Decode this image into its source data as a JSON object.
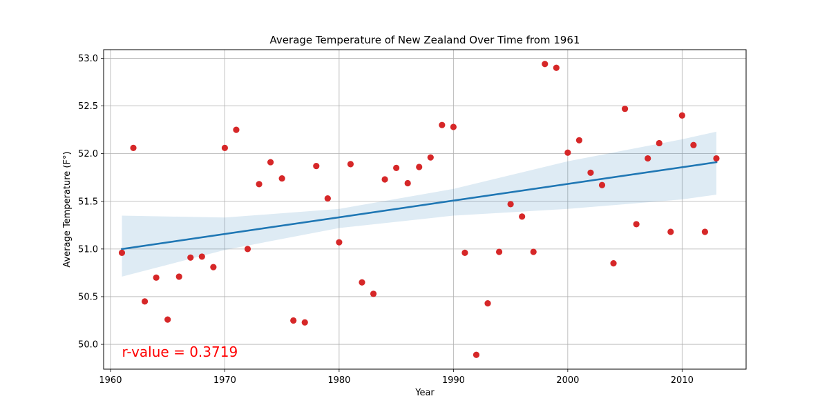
{
  "chart_data": {
    "type": "scatter",
    "title": "Average Temperature of New Zealand Over Time from 1961",
    "xlabel": "Year",
    "ylabel": "Average Temperature (F°)",
    "xlim": [
      1959.4,
      2015.6
    ],
    "ylim": [
      49.74,
      53.09
    ],
    "xticks": [
      1960,
      1970,
      1980,
      1990,
      2000,
      2010
    ],
    "yticks": [
      "50.0",
      "50.5",
      "51.0",
      "51.5",
      "52.0",
      "52.5",
      "53.0"
    ],
    "grid": true,
    "series": [
      {
        "kind": "points",
        "color": "#d62728",
        "x": [
          1961,
          1962,
          1963,
          1964,
          1965,
          1966,
          1967,
          1968,
          1969,
          1970,
          1971,
          1972,
          1973,
          1974,
          1975,
          1976,
          1977,
          1978,
          1979,
          1980,
          1981,
          1982,
          1983,
          1984,
          1985,
          1986,
          1987,
          1988,
          1989,
          1990,
          1991,
          1992,
          1993,
          1994,
          1995,
          1996,
          1997,
          1998,
          1999,
          2000,
          2001,
          2002,
          2003,
          2004,
          2005,
          2006,
          2007,
          2008,
          2009,
          2010,
          2011,
          2012,
          2013
        ],
        "y": [
          50.96,
          52.06,
          50.45,
          50.7,
          50.26,
          50.71,
          50.91,
          50.92,
          50.81,
          52.06,
          52.25,
          51.0,
          51.68,
          51.91,
          51.74,
          50.25,
          50.23,
          51.87,
          51.53,
          51.07,
          51.89,
          50.65,
          50.53,
          51.73,
          51.85,
          51.69,
          51.86,
          51.96,
          52.3,
          52.28,
          50.96,
          49.89,
          50.43,
          50.97,
          51.47,
          51.34,
          50.97,
          52.94,
          52.9,
          52.01,
          52.14,
          51.8,
          51.67,
          50.85,
          52.47,
          51.26,
          51.95,
          52.11,
          51.18,
          52.4,
          52.09,
          51.18,
          51.95
        ]
      },
      {
        "kind": "regression-line",
        "color": "#1f77b4",
        "x": [
          1961,
          2013
        ],
        "y": [
          51.0,
          51.91
        ]
      },
      {
        "kind": "confidence-band",
        "color": "#1f77b4",
        "x": [
          1961,
          1970,
          1980,
          1990,
          2000,
          2010,
          2013
        ],
        "lower": [
          50.71,
          50.99,
          51.22,
          51.35,
          51.42,
          51.52,
          51.57
        ],
        "upper": [
          51.35,
          51.33,
          51.42,
          51.63,
          51.92,
          52.15,
          52.23
        ]
      }
    ],
    "annotations": [
      {
        "text": "r-value = 0.3719",
        "x": 1961,
        "y": 49.92,
        "color": "#ff0000"
      }
    ]
  }
}
